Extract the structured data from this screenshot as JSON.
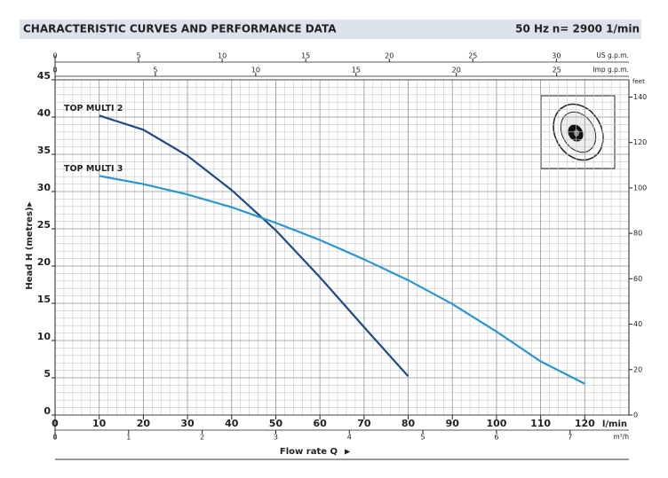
{
  "chart_data": {
    "type": "line",
    "title": "CHARACTERISTIC CURVES AND PERFORMANCE DATA",
    "annotations": [
      "50 Hz",
      "n= 2900  1/min"
    ],
    "xlabel": "Flow rate Q",
    "ylabel": "Head H (metres)",
    "x_unit": "l/min",
    "xlim": [
      0,
      130
    ],
    "xticks": [
      0,
      10,
      20,
      30,
      40,
      50,
      60,
      70,
      80,
      90,
      100,
      110,
      120
    ],
    "ylim": [
      0,
      45
    ],
    "yticks": [
      0,
      5,
      10,
      15,
      20,
      25,
      30,
      35,
      40,
      45
    ],
    "y2_unit": "feet",
    "y2lim": [
      0,
      147.6
    ],
    "y2ticks": [
      0,
      20,
      40,
      60,
      80,
      100,
      120,
      140
    ],
    "x2": {
      "unit": "US g.p.m.",
      "lim": [
        0,
        34.34
      ],
      "ticks": [
        0,
        5,
        10,
        15,
        20,
        25,
        30
      ]
    },
    "x3": {
      "unit": "Imp g.p.m.",
      "lim": [
        0,
        28.6
      ],
      "ticks": [
        0,
        5,
        10,
        15,
        20,
        25
      ]
    },
    "x4": {
      "unit": "m³/h",
      "lim": [
        0,
        7.8
      ],
      "ticks": [
        0,
        1,
        2,
        3,
        4,
        5,
        6,
        7
      ]
    },
    "grid": true,
    "series": [
      {
        "name": "TOP MULTI 2",
        "color": "#1f4a86",
        "x": [
          10,
          20,
          30,
          40,
          50,
          60,
          70,
          80
        ],
        "values": [
          40.2,
          38.3,
          34.8,
          30.2,
          24.8,
          18.5,
          11.8,
          5.2
        ]
      },
      {
        "name": "TOP MULTI 3",
        "color": "#2996d2",
        "x": [
          10,
          20,
          30,
          40,
          50,
          60,
          70,
          80,
          90,
          100,
          110,
          120
        ],
        "values": [
          32.1,
          31.0,
          29.6,
          27.9,
          25.8,
          23.5,
          20.9,
          18.1,
          14.9,
          11.2,
          7.2,
          4.2
        ]
      }
    ]
  }
}
